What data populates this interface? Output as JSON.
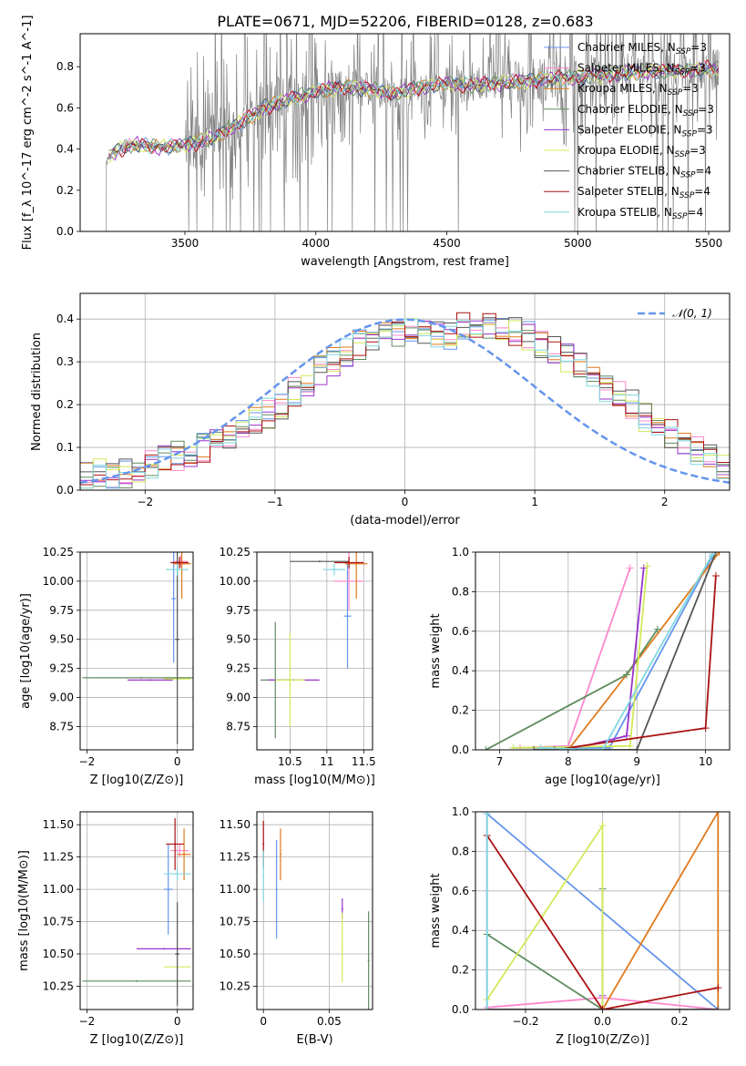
{
  "figure": {
    "title": "PLATE=0671, MJD=52206, FIBERID=0128, z=0.683"
  },
  "colors": {
    "c1": "#6495ed",
    "c2": "#ff88cc",
    "c3": "#e07a1c",
    "c4": "#5e8c5e",
    "c5": "#9933cc",
    "c6": "#d4e85a",
    "c7": "#555555",
    "c8": "#aa1111",
    "c9": "#80d8e0"
  },
  "chart_data": [
    {
      "id": "spectrum",
      "type": "line",
      "xlabel": "wavelength [Angstrom, rest frame]",
      "ylabel": "Flux [f_λ 10^-17 erg cm^-2 s^-1 A^-1]",
      "xlim": [
        3100,
        5580
      ],
      "ylim": [
        0,
        0.96
      ],
      "xticks": [
        3500,
        4000,
        4500,
        5000,
        5500
      ],
      "yticks": [
        0.0,
        0.2,
        0.4,
        0.6,
        0.8
      ],
      "series": [
        {
          "name": "Chabrier MILES",
          "nssp": "3",
          "color": "#6495ed"
        },
        {
          "name": "Salpeter MILES",
          "nssp": "3",
          "color": "#ff88cc"
        },
        {
          "name": "Kroupa MILES",
          "nssp": "3",
          "color": "#e07a1c"
        },
        {
          "name": "Chabrier ELODIE",
          "nssp": "3",
          "color": "#5e8c5e"
        },
        {
          "name": "Salpeter ELODIE",
          "nssp": "3",
          "color": "#9933cc"
        },
        {
          "name": "Kroupa ELODIE",
          "nssp": "3",
          "color": "#d4e85a"
        },
        {
          "name": "Chabrier STELIB",
          "nssp": "4",
          "color": "#555555"
        },
        {
          "name": "Salpeter STELIB",
          "nssp": "4",
          "color": "#aa1111"
        },
        {
          "name": "Kroupa STELIB",
          "nssp": "4",
          "color": "#80d8e0"
        }
      ],
      "model_continuum": [
        [
          3200,
          0.35
        ],
        [
          3250,
          0.4
        ],
        [
          3300,
          0.42
        ],
        [
          3400,
          0.41
        ],
        [
          3500,
          0.42
        ],
        [
          3600,
          0.45
        ],
        [
          3700,
          0.52
        ],
        [
          3800,
          0.6
        ],
        [
          3900,
          0.64
        ],
        [
          4000,
          0.68
        ],
        [
          4100,
          0.7
        ],
        [
          4200,
          0.69
        ],
        [
          4300,
          0.67
        ],
        [
          4400,
          0.7
        ],
        [
          4500,
          0.72
        ],
        [
          4600,
          0.71
        ],
        [
          4700,
          0.72
        ],
        [
          4800,
          0.73
        ],
        [
          4900,
          0.74
        ],
        [
          5000,
          0.75
        ],
        [
          5100,
          0.76
        ],
        [
          5200,
          0.77
        ],
        [
          5300,
          0.78
        ],
        [
          5400,
          0.78
        ],
        [
          5500,
          0.79
        ]
      ],
      "data_envelope": "noisy observed spectrum, grey, spanning 0.0 to 0.96"
    },
    {
      "id": "residuals",
      "type": "histogram",
      "xlabel": "(data-model)/error",
      "ylabel": "Normed distribution",
      "xlim": [
        -2.5,
        2.5
      ],
      "ylim": [
        0,
        0.46
      ],
      "xticks": [
        -2,
        -1,
        0,
        1,
        2
      ],
      "yticks": [
        0.0,
        0.1,
        0.2,
        0.3,
        0.4
      ],
      "legend": "$\\mathcal{N}(0,1)$",
      "legend_label": "𝒩(0, 1)",
      "bins_start": -2.5,
      "bin_width": 0.1,
      "base_values": [
        0.03,
        0.04,
        0.03,
        0.04,
        0.05,
        0.06,
        0.07,
        0.08,
        0.09,
        0.1,
        0.11,
        0.12,
        0.14,
        0.16,
        0.18,
        0.2,
        0.23,
        0.25,
        0.28,
        0.3,
        0.32,
        0.34,
        0.36,
        0.37,
        0.37,
        0.38,
        0.37,
        0.36,
        0.36,
        0.38,
        0.37,
        0.38,
        0.38,
        0.37,
        0.36,
        0.34,
        0.33,
        0.31,
        0.29,
        0.27,
        0.24,
        0.22,
        0.2,
        0.17,
        0.15,
        0.13,
        0.11,
        0.09,
        0.08,
        0.06
      ]
    },
    {
      "id": "age-vs-Z",
      "type": "errorbar",
      "xlabel": "Z [log10(Z/Z⊙)]",
      "ylabel": "age  [log10(age/yr)]",
      "xlim": [
        -2.15,
        0.35
      ],
      "ylim": [
        8.55,
        10.25
      ],
      "xticks": [
        -2,
        0
      ],
      "yticks": [
        8.75,
        9.0,
        9.25,
        9.5,
        9.75,
        10.0,
        10.25
      ],
      "points": [
        {
          "s": "c1",
          "x": -0.08,
          "xe": 0.05,
          "y": 9.85,
          "ye": 0.55
        },
        {
          "s": "c2",
          "x": 0.08,
          "xe": 0.15,
          "y": 10.17,
          "ye": 0.05
        },
        {
          "s": "c3",
          "x": 0.1,
          "xe": 0.2,
          "y": 10.15,
          "ye": 0.3
        },
        {
          "s": "c4",
          "x": -0.8,
          "xe": 1.3,
          "y": 9.17,
          "ye": 0.0
        },
        {
          "s": "c5",
          "x": -0.6,
          "xe": 0.5,
          "y": 9.15,
          "ye": 0.0
        },
        {
          "s": "c6",
          "x": 0.0,
          "xe": 0.3,
          "y": 9.16,
          "ye": 0.0
        },
        {
          "s": "c7",
          "x": 0.0,
          "xe": 0.05,
          "y": 9.5,
          "ye": 0.9
        },
        {
          "s": "c8",
          "x": 0.05,
          "xe": 0.2,
          "y": 10.16,
          "ye": 0.05
        },
        {
          "s": "c9",
          "x": 0.0,
          "xe": 0.25,
          "y": 10.1,
          "ye": 0.05
        }
      ]
    },
    {
      "id": "age-vs-mass",
      "type": "errorbar",
      "xlabel": "mass [log10(M/M⊙)]",
      "ylabel": "",
      "xlim": [
        10.05,
        11.62
      ],
      "ylim": [
        8.55,
        10.25
      ],
      "xticks": [
        10.5,
        11.0,
        11.5
      ],
      "yticks": [
        8.75,
        9.0,
        9.25,
        9.5,
        9.75,
        10.0,
        10.25
      ],
      "points": [
        {
          "s": "c1",
          "x": 11.28,
          "xe": 0.05,
          "y": 9.7,
          "ye": 0.45
        },
        {
          "s": "c2",
          "x": 11.3,
          "xe": 0.2,
          "y": 10.0,
          "ye": 0.25
        },
        {
          "s": "c3",
          "x": 11.4,
          "xe": 0.15,
          "y": 10.15,
          "ye": 0.3
        },
        {
          "s": "c4",
          "x": 10.3,
          "xe": 0.2,
          "y": 9.15,
          "ye": 0.5
        },
        {
          "s": "c5",
          "x": 10.55,
          "xe": 0.35,
          "y": 9.15,
          "ye": 0.0
        },
        {
          "s": "c6",
          "x": 10.5,
          "xe": 0.2,
          "y": 9.15,
          "ye": 0.4
        },
        {
          "s": "c7",
          "x": 10.9,
          "xe": 0.4,
          "y": 10.17,
          "ye": 0.0
        },
        {
          "s": "c8",
          "x": 11.3,
          "xe": 0.2,
          "y": 10.16,
          "ye": 0.05
        },
        {
          "s": "c9",
          "x": 11.1,
          "xe": 0.15,
          "y": 10.1,
          "ye": 0.05
        }
      ]
    },
    {
      "id": "massweight-vs-age",
      "type": "line",
      "xlabel": "age  [log10(age/yr)]",
      "ylabel": "mass weight",
      "xlim": [
        6.65,
        10.35
      ],
      "ylim": [
        0,
        1
      ],
      "xticks": [
        7,
        8,
        9,
        10
      ],
      "yticks": [
        0.0,
        0.2,
        0.4,
        0.6,
        0.8,
        1.0
      ],
      "series": [
        {
          "s": "c1",
          "x": [
            7.2,
            8.6,
            10.1
          ],
          "y": [
            0.01,
            0.01,
            0.98
          ]
        },
        {
          "s": "c2",
          "x": [
            7.3,
            8.0,
            8.9
          ],
          "y": [
            0.01,
            0.02,
            0.92
          ]
        },
        {
          "s": "c3",
          "x": [
            8.0,
            8.85,
            10.2
          ],
          "y": [
            0.0,
            0.38,
            1.0
          ]
        },
        {
          "s": "c4",
          "x": [
            6.8,
            8.85,
            9.3
          ],
          "y": [
            0.0,
            0.38,
            0.61
          ]
        },
        {
          "s": "c5",
          "x": [
            8.0,
            8.85,
            9.1
          ],
          "y": [
            0.0,
            0.07,
            0.92
          ]
        },
        {
          "s": "c6",
          "x": [
            7.2,
            8.9,
            9.15
          ],
          "y": [
            0.01,
            0.02,
            0.93
          ]
        },
        {
          "s": "c7",
          "x": [
            7.5,
            9.0,
            10.15
          ],
          "y": [
            0.0,
            0.0,
            1.0
          ]
        },
        {
          "s": "c8",
          "x": [
            7.8,
            10.0,
            10.15
          ],
          "y": [
            0.0,
            0.11,
            0.88
          ]
        },
        {
          "s": "c9",
          "x": [
            7.6,
            8.5,
            10.1
          ],
          "y": [
            0.01,
            0.0,
            0.99
          ]
        }
      ]
    },
    {
      "id": "mass-vs-Z",
      "type": "errorbar",
      "xlabel": "Z [log10(Z/Z⊙)]",
      "ylabel": "mass [log10(M/M⊙)]",
      "xlim": [
        -2.15,
        0.35
      ],
      "ylim": [
        10.07,
        11.6
      ],
      "xticks": [
        -2,
        0
      ],
      "yticks": [
        10.25,
        10.5,
        10.75,
        11.0,
        11.25,
        11.5
      ],
      "points": [
        {
          "s": "c1",
          "x": -0.2,
          "xe": 0.1,
          "y": 11.0,
          "ye": 0.35
        },
        {
          "s": "c2",
          "x": 0.05,
          "xe": 0.2,
          "y": 11.3,
          "ye": 0.05
        },
        {
          "s": "c3",
          "x": 0.15,
          "xe": 0.15,
          "y": 11.27,
          "ye": 0.2
        },
        {
          "s": "c4",
          "x": -0.9,
          "xe": 1.2,
          "y": 10.29,
          "ye": 0.0
        },
        {
          "s": "c5",
          "x": -0.3,
          "xe": 0.6,
          "y": 10.54,
          "ye": 0.0
        },
        {
          "s": "c6",
          "x": 0.0,
          "xe": 0.3,
          "y": 10.4,
          "ye": 0.0
        },
        {
          "s": "c7",
          "x": 0.0,
          "xe": 0.05,
          "y": 10.5,
          "ye": 0.4
        },
        {
          "s": "c8",
          "x": -0.05,
          "xe": 0.2,
          "y": 11.35,
          "ye": 0.2
        },
        {
          "s": "c9",
          "x": 0.0,
          "xe": 0.3,
          "y": 11.12,
          "ye": 0.05
        }
      ]
    },
    {
      "id": "mass-vs-ebv",
      "type": "errorbar",
      "xlabel": "E(B-V)",
      "ylabel": "",
      "xlim": [
        -0.005,
        0.083
      ],
      "ylim": [
        10.07,
        11.6
      ],
      "xticks": [
        0.0,
        0.05
      ],
      "yticks": [
        10.25,
        10.5,
        10.75,
        11.0,
        11.25,
        11.5
      ],
      "points": [
        {
          "s": "c1",
          "x": 0.01,
          "xe": 0.0,
          "y": 11.0,
          "ye": 0.38
        },
        {
          "s": "c3",
          "x": 0.013,
          "xe": 0.0,
          "y": 11.27,
          "ye": 0.2
        },
        {
          "s": "c4",
          "x": 0.08,
          "xe": 0.0,
          "y": 10.45,
          "ye": 0.38
        },
        {
          "s": "c5",
          "x": 0.06,
          "xe": 0.0,
          "y": 10.85,
          "ye": 0.08
        },
        {
          "s": "c6",
          "x": 0.06,
          "xe": 0.0,
          "y": 10.55,
          "ye": 0.27
        },
        {
          "s": "c8",
          "x": 0.0,
          "xe": 0.0,
          "y": 11.35,
          "ye": 0.18
        },
        {
          "s": "c9",
          "x": 0.0,
          "xe": 0.0,
          "y": 11.1,
          "ye": 0.2
        }
      ]
    },
    {
      "id": "massweight-vs-Z",
      "type": "line",
      "xlabel": "Z [log10(Z/Z⊙)]",
      "ylabel": "mass weight",
      "xlim": [
        -0.33,
        0.33
      ],
      "ylim": [
        0,
        1
      ],
      "xticks": [
        -0.2,
        0.0,
        0.2
      ],
      "yticks": [
        0.0,
        0.2,
        0.4,
        0.6,
        0.8,
        1.0
      ],
      "series": [
        {
          "s": "c1",
          "x": [
            -0.3,
            -0.3,
            0.3
          ],
          "y": [
            0.0,
            0.99,
            0.0
          ]
        },
        {
          "s": "c2",
          "x": [
            -0.3,
            0.0,
            0.3
          ],
          "y": [
            0.01,
            0.06,
            0.0
          ]
        },
        {
          "s": "c3",
          "x": [
            -0.3,
            0.0,
            0.3,
            0.3
          ],
          "y": [
            0.0,
            0.0,
            1.0,
            0.0
          ]
        },
        {
          "s": "c4",
          "x": [
            -0.3,
            0.0,
            0.0
          ],
          "y": [
            0.38,
            0.0,
            0.61
          ]
        },
        {
          "s": "c5",
          "x": [
            -0.3,
            0.0,
            0.0
          ],
          "y": [
            0.0,
            0.0,
            0.07
          ]
        },
        {
          "s": "c6",
          "x": [
            -0.3,
            0.0,
            0.0
          ],
          "y": [
            0.05,
            0.93,
            0.0
          ]
        },
        {
          "s": "c7",
          "x": [
            -0.3,
            0.3
          ],
          "y": [
            0.0,
            0.0
          ]
        },
        {
          "s": "c8",
          "x": [
            -0.3,
            0.0,
            0.3
          ],
          "y": [
            0.88,
            0.0,
            0.11
          ]
        },
        {
          "s": "c9",
          "x": [
            -0.3,
            -0.3
          ],
          "y": [
            0.0,
            0.99
          ]
        }
      ]
    }
  ]
}
